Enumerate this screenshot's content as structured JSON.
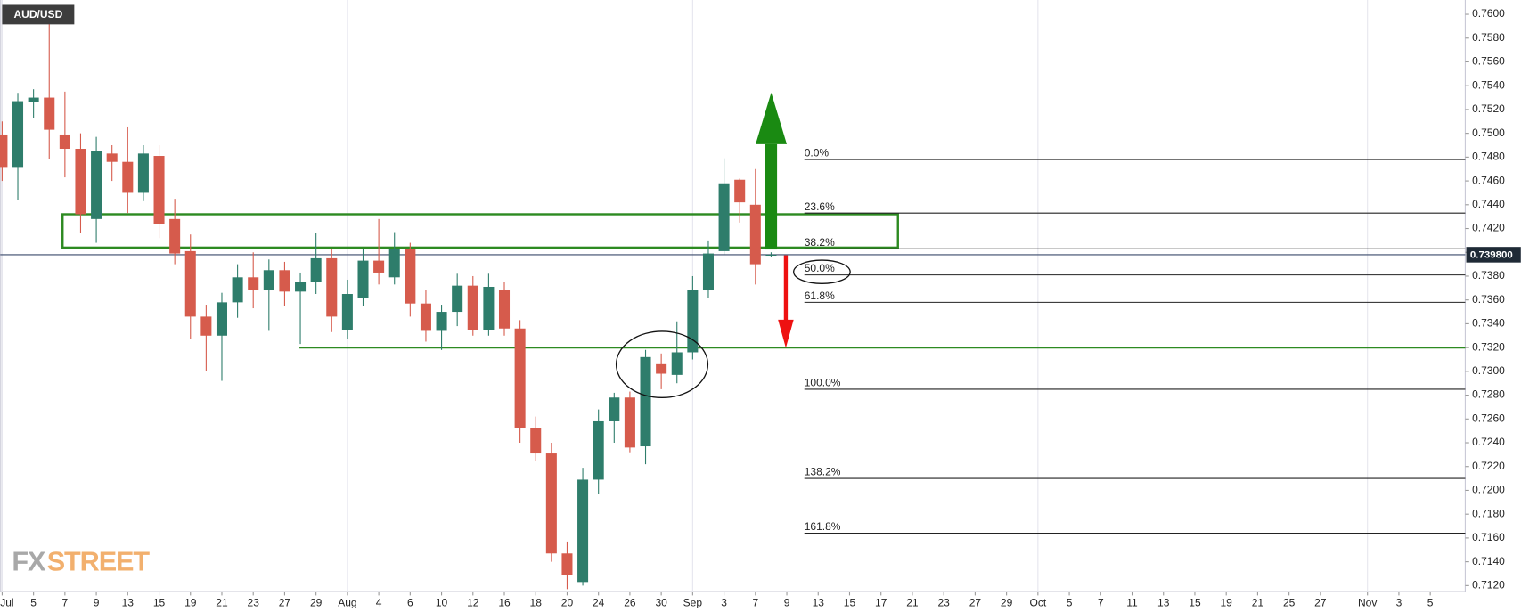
{
  "chart_data": {
    "type": "candlestick",
    "title": "AUD/USD",
    "up_color": "#2e7d6b",
    "down_color": "#d65b4c",
    "open": [
      0.7499,
      0.7471,
      0.7526,
      0.753,
      0.7499,
      0.7487,
      0.7428,
      0.7483,
      0.7476,
      0.745,
      0.7481,
      0.7428,
      0.7401,
      0.7346,
      0.733,
      0.7358,
      0.7379,
      0.7368,
      0.7385,
      0.7367,
      0.7375,
      0.7395,
      0.7335,
      0.7362,
      0.7393,
      0.7379,
      0.7403,
      0.7357,
      0.7334,
      0.735,
      0.7372,
      0.7335,
      0.7368,
      0.7336,
      0.7252,
      0.7231,
      0.7147,
      0.7123,
      0.7209,
      0.7258,
      0.7278,
      0.7237,
      0.7306,
      0.7297,
      0.7316,
      0.7368,
      0.7401,
      0.7461,
      0.744,
      0.7398
    ],
    "high": [
      0.751,
      0.7534,
      0.7537,
      0.7592,
      0.7535,
      0.75,
      0.7497,
      0.749,
      0.7505,
      0.749,
      0.749,
      0.7445,
      0.7415,
      0.7356,
      0.7366,
      0.739,
      0.74,
      0.7394,
      0.7392,
      0.7383,
      0.7416,
      0.7403,
      0.7377,
      0.7403,
      0.7428,
      0.7417,
      0.7408,
      0.7368,
      0.7356,
      0.7382,
      0.738,
      0.7382,
      0.7375,
      0.7343,
      0.7262,
      0.724,
      0.7157,
      0.7219,
      0.7268,
      0.7282,
      0.7283,
      0.7318,
      0.7315,
      0.7342,
      0.738,
      0.741,
      0.7479,
      0.7462,
      0.747,
      0.74
    ],
    "low": [
      0.746,
      0.7444,
      0.7513,
      0.7478,
      0.7463,
      0.7416,
      0.7408,
      0.746,
      0.7433,
      0.7443,
      0.7412,
      0.739,
      0.7327,
      0.73,
      0.7292,
      0.7345,
      0.7353,
      0.7334,
      0.7355,
      0.7323,
      0.7365,
      0.7333,
      0.7327,
      0.7355,
      0.7373,
      0.7373,
      0.7346,
      0.7325,
      0.7318,
      0.7338,
      0.733,
      0.733,
      0.733,
      0.724,
      0.7225,
      0.714,
      0.7117,
      0.712,
      0.7197,
      0.724,
      0.7232,
      0.7222,
      0.7285,
      0.729,
      0.731,
      0.7362,
      0.7398,
      0.7425,
      0.7373,
      0.7396
    ],
    "close": [
      0.7471,
      0.7527,
      0.753,
      0.7503,
      0.7487,
      0.7432,
      0.7485,
      0.7476,
      0.745,
      0.7483,
      0.7424,
      0.7399,
      0.7346,
      0.733,
      0.7358,
      0.7379,
      0.7368,
      0.7385,
      0.7367,
      0.7375,
      0.7395,
      0.7346,
      0.7365,
      0.7393,
      0.7383,
      0.7403,
      0.7357,
      0.7334,
      0.735,
      0.7372,
      0.7335,
      0.7371,
      0.7336,
      0.7252,
      0.7231,
      0.7147,
      0.7129,
      0.7209,
      0.7258,
      0.7278,
      0.7236,
      0.7312,
      0.7298,
      0.7316,
      0.7368,
      0.7399,
      0.7458,
      0.7442,
      0.739,
      0.7398
    ],
    "ylim": [
      0.7115,
      0.7612
    ],
    "yticks": [
      {
        "value": 0.712,
        "label": "0.7120"
      },
      {
        "value": 0.714,
        "label": "0.7140"
      },
      {
        "value": 0.716,
        "label": "0.7160"
      },
      {
        "value": 0.718,
        "label": "0.7180"
      },
      {
        "value": 0.72,
        "label": "0.7200"
      },
      {
        "value": 0.722,
        "label": "0.7220"
      },
      {
        "value": 0.724,
        "label": "0.7240"
      },
      {
        "value": 0.726,
        "label": "0.7260"
      },
      {
        "value": 0.728,
        "label": "0.7280"
      },
      {
        "value": 0.73,
        "label": "0.7300"
      },
      {
        "value": 0.732,
        "label": "0.7320"
      },
      {
        "value": 0.734,
        "label": "0.7340"
      },
      {
        "value": 0.736,
        "label": "0.7360"
      },
      {
        "value": 0.738,
        "label": "0.7380"
      },
      {
        "value": 0.74,
        "label": "0.7400"
      },
      {
        "value": 0.742,
        "label": "0.7420"
      },
      {
        "value": 0.744,
        "label": "0.7440"
      },
      {
        "value": 0.746,
        "label": "0.7460"
      },
      {
        "value": 0.748,
        "label": "0.7480"
      },
      {
        "value": 0.75,
        "label": "0.7500"
      },
      {
        "value": 0.752,
        "label": "0.7520"
      },
      {
        "value": 0.754,
        "label": "0.7540"
      },
      {
        "value": 0.756,
        "label": "0.7560"
      },
      {
        "value": 0.758,
        "label": "0.7580"
      },
      {
        "value": 0.76,
        "label": "0.7600"
      }
    ],
    "xticks": [
      {
        "value": 0,
        "label": "Jul"
      },
      {
        "value": 2,
        "label": "5"
      },
      {
        "value": 4,
        "label": "7"
      },
      {
        "value": 6,
        "label": "9"
      },
      {
        "value": 8,
        "label": "13"
      },
      {
        "value": 10,
        "label": "15"
      },
      {
        "value": 12,
        "label": "19"
      },
      {
        "value": 14,
        "label": "21"
      },
      {
        "value": 16,
        "label": "23"
      },
      {
        "value": 18,
        "label": "27"
      },
      {
        "value": 20,
        "label": "29"
      },
      {
        "value": 22,
        "label": "Aug"
      },
      {
        "value": 24,
        "label": "4"
      },
      {
        "value": 26,
        "label": "6"
      },
      {
        "value": 28,
        "label": "10"
      },
      {
        "value": 30,
        "label": "12"
      },
      {
        "value": 32,
        "label": "16"
      },
      {
        "value": 34,
        "label": "18"
      },
      {
        "value": 36,
        "label": "20"
      },
      {
        "value": 38,
        "label": "24"
      },
      {
        "value": 40,
        "label": "26"
      },
      {
        "value": 42,
        "label": "30"
      },
      {
        "value": 44,
        "label": "Sep"
      },
      {
        "value": 46,
        "label": "3"
      },
      {
        "value": 48,
        "label": "7"
      },
      {
        "value": 50,
        "label": "9"
      },
      {
        "value": 52,
        "label": "13"
      },
      {
        "value": 54,
        "label": "15"
      },
      {
        "value": 56,
        "label": "17"
      },
      {
        "value": 58,
        "label": "21"
      },
      {
        "value": 60,
        "label": "23"
      },
      {
        "value": 62,
        "label": "27"
      },
      {
        "value": 64,
        "label": "29"
      },
      {
        "value": 66,
        "label": "Oct"
      },
      {
        "value": 68,
        "label": "5"
      },
      {
        "value": 70,
        "label": "7"
      },
      {
        "value": 72,
        "label": "11"
      },
      {
        "value": 74,
        "label": "13"
      },
      {
        "value": 76,
        "label": "15"
      },
      {
        "value": 78,
        "label": "19"
      },
      {
        "value": 80,
        "label": "21"
      },
      {
        "value": 82,
        "label": "25"
      },
      {
        "value": 84,
        "label": "27"
      },
      {
        "value": 87,
        "label": "Nov"
      },
      {
        "value": 89,
        "label": "3"
      },
      {
        "value": 91,
        "label": "5"
      }
    ],
    "month_ticks": [
      "Jul",
      "Aug",
      "Sep",
      "Oct",
      "Nov"
    ],
    "last_price": {
      "value": 0.7398,
      "label": "0.739800"
    },
    "fib_levels": [
      {
        "label": "0.0%",
        "price": 0.7478
      },
      {
        "label": "23.6%",
        "price": 0.7433
      },
      {
        "label": "38.2%",
        "price": 0.7403
      },
      {
        "label": "50.0%",
        "price": 0.7381
      },
      {
        "label": "61.8%",
        "price": 0.7358
      },
      {
        "label": "100.0%",
        "price": 0.7285
      },
      {
        "label": "138.2%",
        "price": 0.721
      },
      {
        "label": "161.8%",
        "price": 0.7164
      }
    ],
    "support_level": 0.732,
    "zone": [
      0.7404,
      0.7432
    ],
    "logo": {
      "fx": "FX",
      "street": "STREET"
    }
  }
}
